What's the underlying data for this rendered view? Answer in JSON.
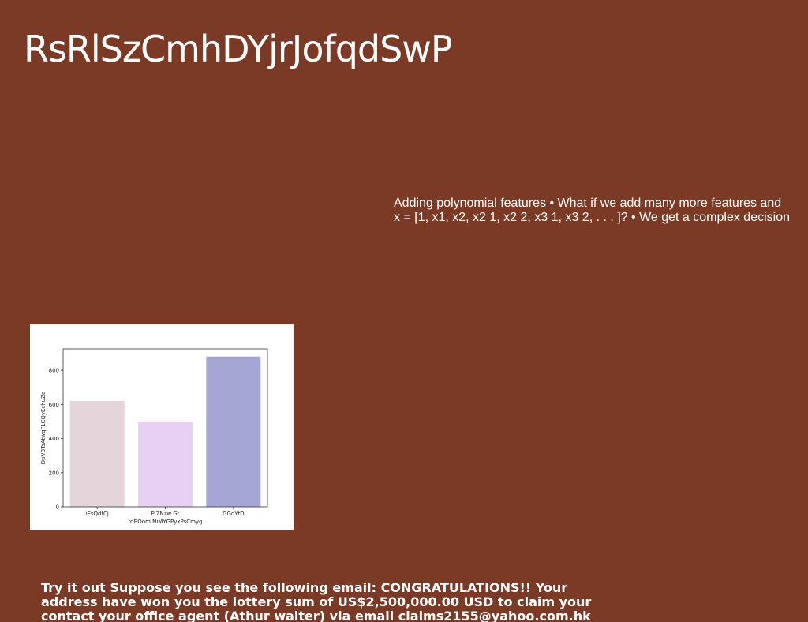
{
  "slide": {
    "title": "RsRlSzCmhDYjrJofqdSwP",
    "polynomial_text": {
      "line1": "Adding polynomial features • What if we add many more features and",
      "line2": "x = [1, x1, x2, x2 1, x2 2, x3 1, x3 2, . . . ]? • We get a complex decision"
    },
    "email_text": {
      "line1": "Try it out Suppose you see the following email: CONGRATULATIONS!! Your",
      "line2": "address have won you the lottery sum of US$2,500,000.00 USD to claim your",
      "line3": "contact your office agent (Athur walter) via email claims2155@yahoo.com.hk"
    },
    "background_color": "#7b3a25"
  },
  "chart_data": {
    "type": "bar",
    "categories": [
      "iEsQdfCj",
      "PIZNzw Gt",
      "GGqYfD"
    ],
    "values": [
      620,
      500,
      880
    ],
    "colors": [
      "#e3d5da",
      "#e7d0f2",
      "#a6a6d4"
    ],
    "xlabel": "rdBOom NiMYGPyxPsCmyg",
    "ylabel": "DpVBTsAtwqFLCQyEchuZa",
    "ylim": [
      0,
      925
    ],
    "yticks": [
      0,
      200,
      400,
      600,
      800
    ],
    "grid": false
  }
}
